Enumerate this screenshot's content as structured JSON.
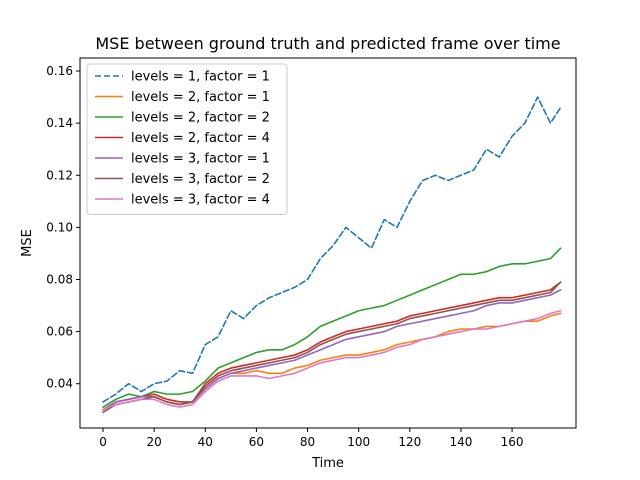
{
  "chart_data": {
    "type": "line",
    "title": "MSE between ground truth and predicted frame over time",
    "xlabel": "Time",
    "ylabel": "MSE",
    "xlim": [
      -9,
      185
    ],
    "ylim": [
      0.023,
      0.165
    ],
    "xticks": [
      0,
      20,
      40,
      60,
      80,
      100,
      120,
      140,
      160
    ],
    "yticks": [
      0.04,
      0.06,
      0.08,
      0.1,
      0.12,
      0.14,
      0.16
    ],
    "ytick_labels": [
      "0.04",
      "0.06",
      "0.08",
      "0.10",
      "0.12",
      "0.14",
      "0.16"
    ],
    "grid": false,
    "legend_position": "top-left",
    "x": [
      0,
      5,
      10,
      15,
      20,
      25,
      30,
      35,
      40,
      45,
      50,
      55,
      60,
      65,
      70,
      75,
      80,
      85,
      90,
      95,
      100,
      105,
      110,
      115,
      120,
      125,
      130,
      135,
      140,
      145,
      150,
      155,
      160,
      165,
      170,
      175,
      179
    ],
    "series": [
      {
        "name": "levels = 1, factor = 1",
        "color": "#1f77b4",
        "dash": true,
        "values": [
          0.033,
          0.036,
          0.04,
          0.037,
          0.04,
          0.041,
          0.045,
          0.044,
          0.055,
          0.058,
          0.068,
          0.065,
          0.07,
          0.073,
          0.075,
          0.077,
          0.08,
          0.088,
          0.093,
          0.1,
          0.096,
          0.092,
          0.103,
          0.1,
          0.11,
          0.118,
          0.12,
          0.118,
          0.12,
          0.122,
          0.13,
          0.127,
          0.135,
          0.14,
          0.15,
          0.14,
          0.146
        ]
      },
      {
        "name": "levels = 2, factor = 1",
        "color": "#ff7f0e",
        "dash": false,
        "values": [
          0.03,
          0.033,
          0.034,
          0.035,
          0.035,
          0.033,
          0.032,
          0.033,
          0.038,
          0.042,
          0.044,
          0.044,
          0.045,
          0.044,
          0.044,
          0.046,
          0.047,
          0.049,
          0.05,
          0.051,
          0.051,
          0.052,
          0.053,
          0.055,
          0.056,
          0.057,
          0.058,
          0.06,
          0.061,
          0.061,
          0.062,
          0.062,
          0.063,
          0.064,
          0.064,
          0.066,
          0.067
        ]
      },
      {
        "name": "levels = 2, factor = 2",
        "color": "#2ca02c",
        "dash": false,
        "values": [
          0.031,
          0.034,
          0.036,
          0.035,
          0.037,
          0.036,
          0.036,
          0.037,
          0.041,
          0.046,
          0.048,
          0.05,
          0.052,
          0.053,
          0.053,
          0.055,
          0.058,
          0.062,
          0.064,
          0.066,
          0.068,
          0.069,
          0.07,
          0.072,
          0.074,
          0.076,
          0.078,
          0.08,
          0.082,
          0.082,
          0.083,
          0.085,
          0.086,
          0.086,
          0.087,
          0.088,
          0.092
        ]
      },
      {
        "name": "levels = 2, factor = 4",
        "color": "#d62728",
        "dash": false,
        "values": [
          0.03,
          0.033,
          0.034,
          0.035,
          0.036,
          0.034,
          0.033,
          0.033,
          0.04,
          0.044,
          0.046,
          0.047,
          0.048,
          0.049,
          0.05,
          0.051,
          0.053,
          0.056,
          0.058,
          0.06,
          0.061,
          0.062,
          0.063,
          0.064,
          0.066,
          0.067,
          0.068,
          0.069,
          0.07,
          0.071,
          0.072,
          0.073,
          0.073,
          0.074,
          0.075,
          0.076,
          0.079
        ]
      },
      {
        "name": "levels = 3, factor = 1",
        "color": "#9467bd",
        "dash": false,
        "values": [
          0.03,
          0.033,
          0.034,
          0.035,
          0.035,
          0.033,
          0.032,
          0.033,
          0.038,
          0.042,
          0.044,
          0.045,
          0.046,
          0.047,
          0.048,
          0.049,
          0.051,
          0.053,
          0.055,
          0.057,
          0.058,
          0.059,
          0.06,
          0.062,
          0.063,
          0.064,
          0.065,
          0.066,
          0.067,
          0.068,
          0.07,
          0.071,
          0.071,
          0.072,
          0.073,
          0.074,
          0.076
        ]
      },
      {
        "name": "levels = 3, factor = 2",
        "color": "#8c564b",
        "dash": false,
        "values": [
          0.029,
          0.032,
          0.033,
          0.034,
          0.035,
          0.033,
          0.032,
          0.033,
          0.039,
          0.043,
          0.045,
          0.046,
          0.047,
          0.048,
          0.049,
          0.05,
          0.052,
          0.055,
          0.057,
          0.059,
          0.06,
          0.061,
          0.062,
          0.063,
          0.065,
          0.066,
          0.067,
          0.068,
          0.069,
          0.07,
          0.071,
          0.072,
          0.072,
          0.073,
          0.074,
          0.075,
          0.079
        ]
      },
      {
        "name": "levels = 3, factor = 4",
        "color": "#e377c2",
        "dash": false,
        "values": [
          0.03,
          0.032,
          0.033,
          0.034,
          0.034,
          0.032,
          0.031,
          0.032,
          0.037,
          0.041,
          0.043,
          0.043,
          0.043,
          0.042,
          0.043,
          0.044,
          0.046,
          0.048,
          0.049,
          0.05,
          0.05,
          0.051,
          0.052,
          0.054,
          0.055,
          0.057,
          0.058,
          0.059,
          0.06,
          0.061,
          0.061,
          0.062,
          0.063,
          0.064,
          0.065,
          0.067,
          0.068
        ]
      }
    ]
  }
}
